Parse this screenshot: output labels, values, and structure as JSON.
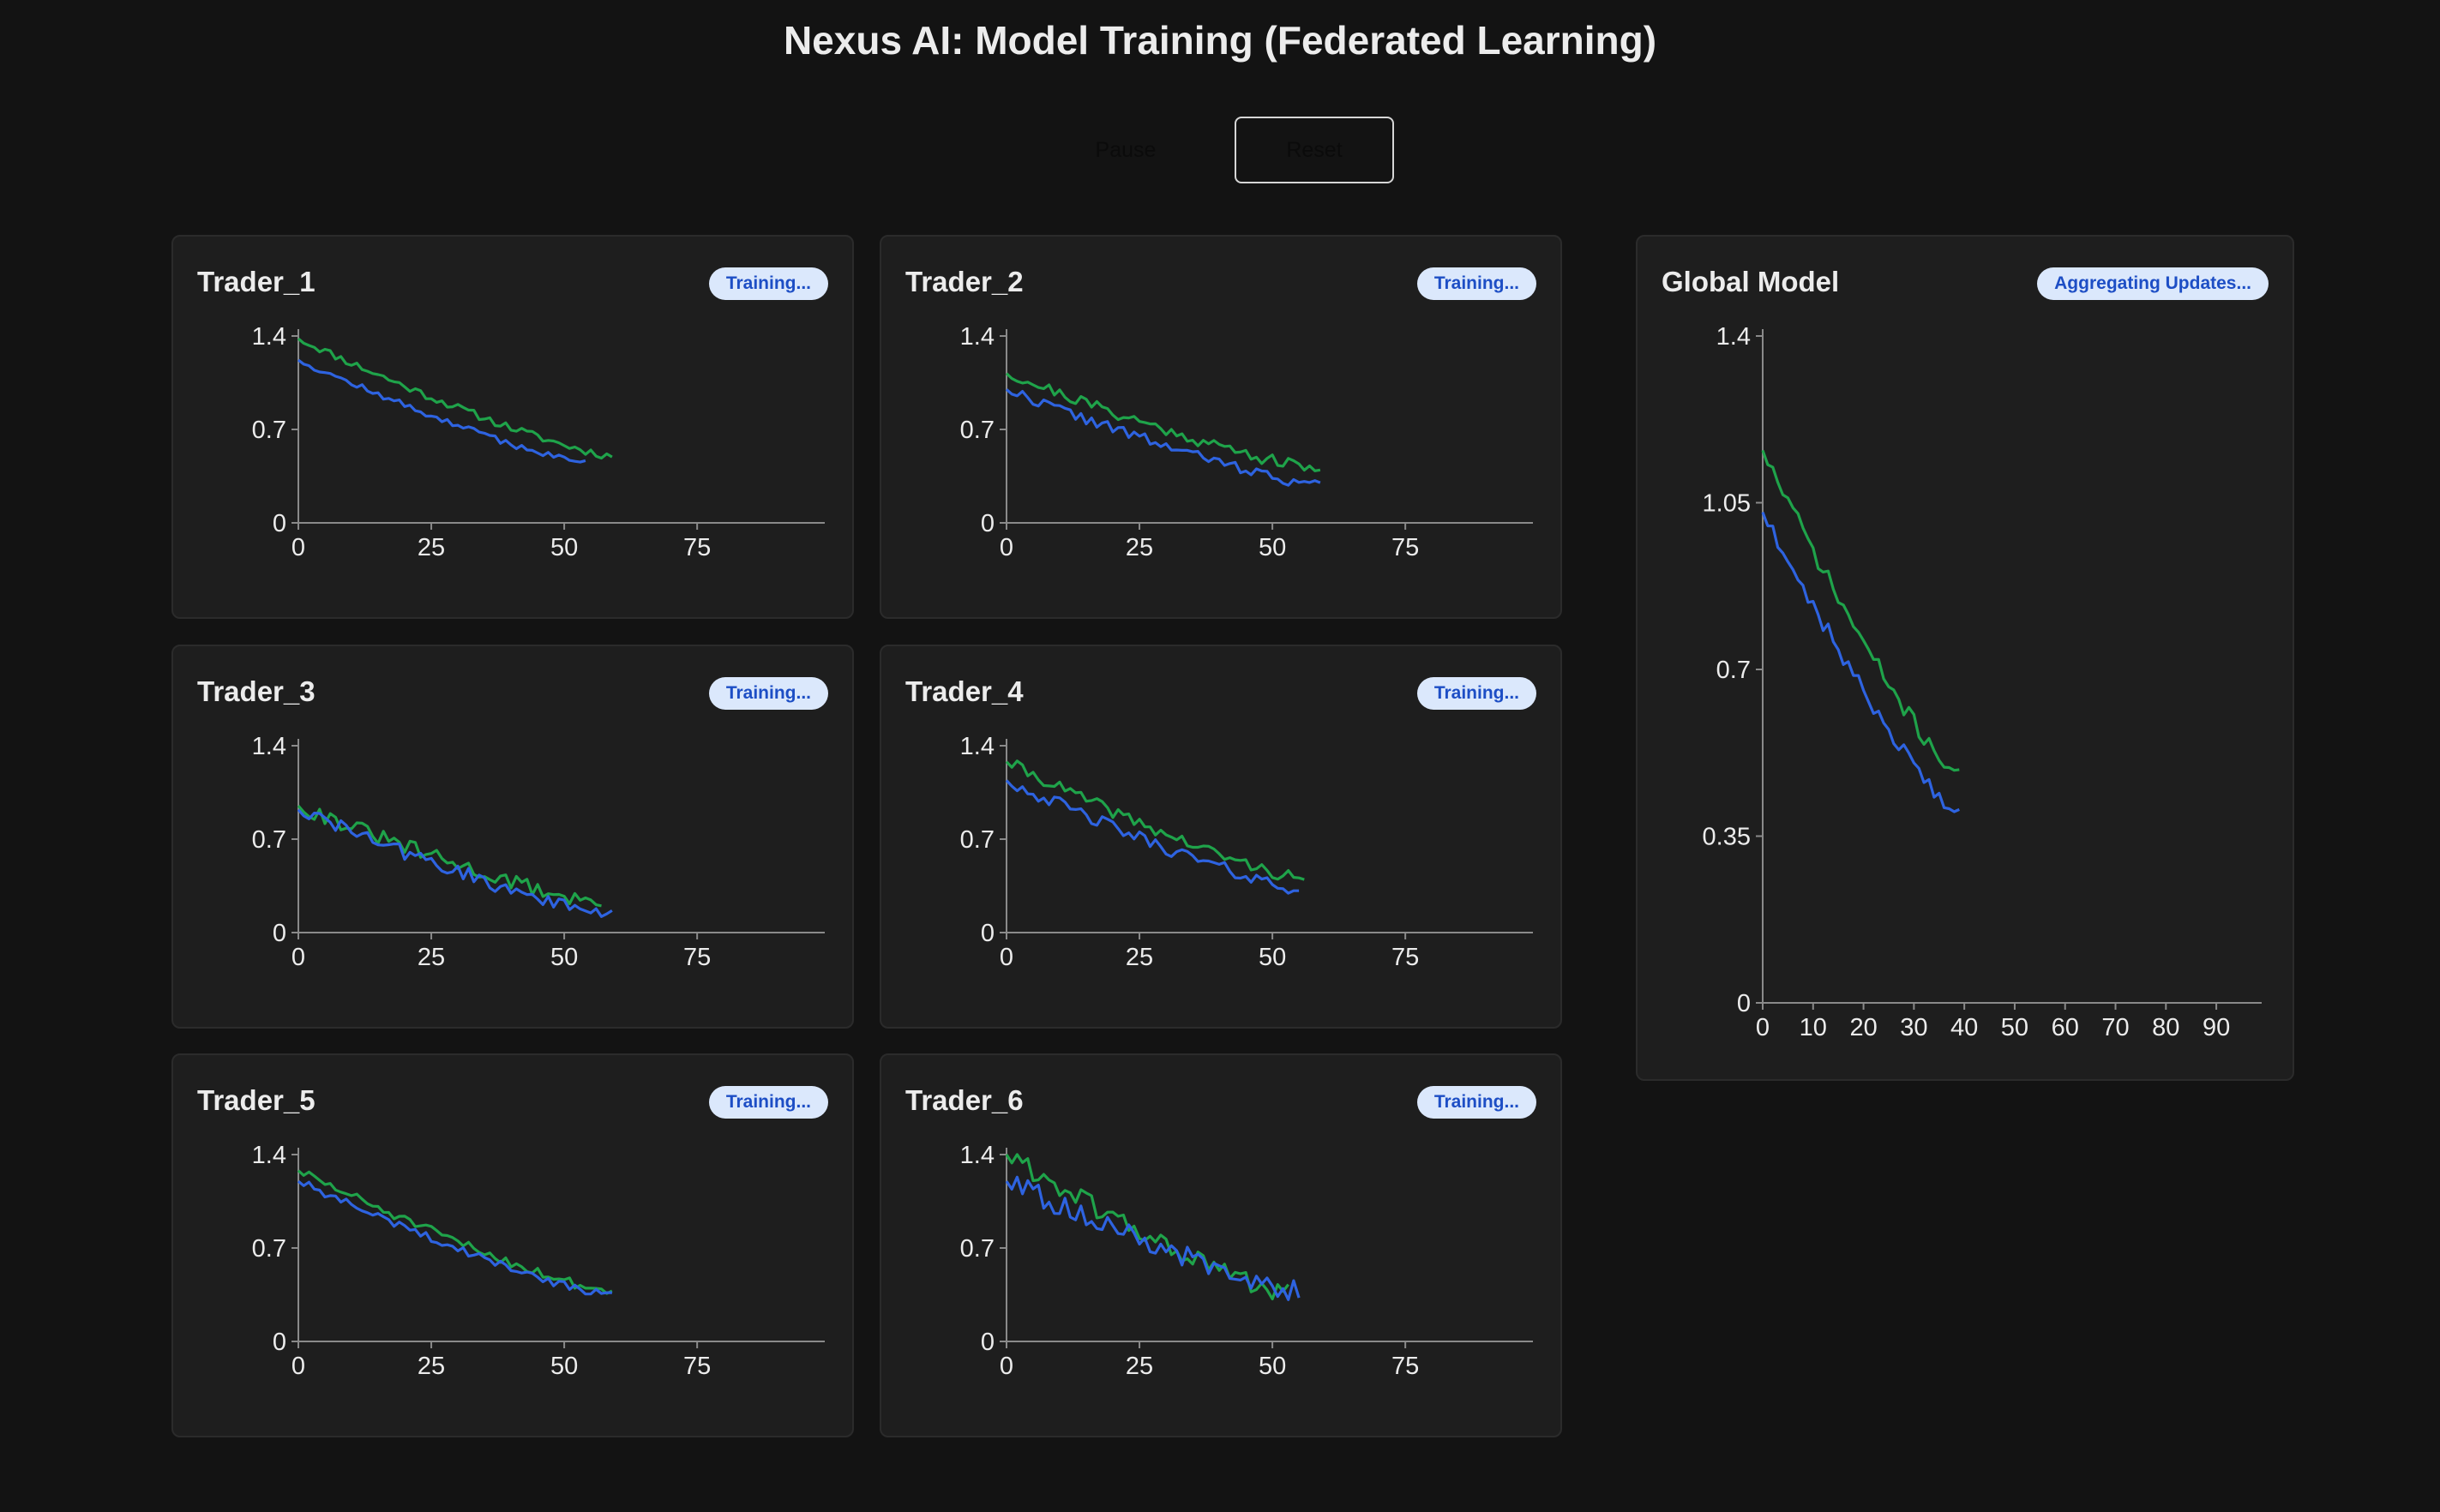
{
  "app": {
    "title": "Nexus AI: Model Training (Federated Learning)"
  },
  "controls": {
    "pause_label": "Pause",
    "reset_label": "Reset"
  },
  "colors": {
    "series_a": "#1fa34a",
    "series_b": "#2e63e0",
    "badge_bg": "#dbe8fc",
    "badge_text": "#1d4ec5"
  },
  "traders": [
    {
      "name": "Trader_1",
      "status": "Training..."
    },
    {
      "name": "Trader_2",
      "status": "Training..."
    },
    {
      "name": "Trader_3",
      "status": "Training..."
    },
    {
      "name": "Trader_4",
      "status": "Training..."
    },
    {
      "name": "Trader_5",
      "status": "Training..."
    },
    {
      "name": "Trader_6",
      "status": "Training..."
    }
  ],
  "global_model": {
    "name": "Global Model",
    "status": "Aggregating Updates..."
  },
  "chart_data": [
    {
      "id": "Trader_1",
      "type": "line",
      "xlim": [
        0,
        99
      ],
      "ylim": [
        0,
        1.4
      ],
      "xticks": [
        0,
        25,
        50,
        75
      ],
      "yticks": [
        0,
        0.7,
        1.4
      ],
      "series": [
        {
          "name": "green",
          "x": [
            0,
            59
          ],
          "start": 1.38,
          "end": 0.5,
          "noise": 0.03,
          "seed": 11
        },
        {
          "name": "blue",
          "x": [
            0,
            54
          ],
          "start": 1.22,
          "end": 0.45,
          "noise": 0.025,
          "seed": 12
        }
      ]
    },
    {
      "id": "Trader_2",
      "type": "line",
      "xlim": [
        0,
        99
      ],
      "ylim": [
        0,
        1.4
      ],
      "xticks": [
        0,
        25,
        50,
        75
      ],
      "yticks": [
        0,
        0.7,
        1.4
      ],
      "series": [
        {
          "name": "green",
          "x": [
            0,
            59
          ],
          "start": 1.12,
          "end": 0.4,
          "noise": 0.045,
          "seed": 21
        },
        {
          "name": "blue",
          "x": [
            0,
            59
          ],
          "start": 1.0,
          "end": 0.28,
          "noise": 0.04,
          "seed": 22
        }
      ]
    },
    {
      "id": "Trader_3",
      "type": "line",
      "xlim": [
        0,
        99
      ],
      "ylim": [
        0,
        1.4
      ],
      "xticks": [
        0,
        25,
        50,
        75
      ],
      "yticks": [
        0,
        0.7,
        1.4
      ],
      "series": [
        {
          "name": "green",
          "x": [
            0,
            57
          ],
          "start": 0.95,
          "end": 0.22,
          "noise": 0.06,
          "seed": 31
        },
        {
          "name": "blue",
          "x": [
            0,
            59
          ],
          "start": 0.92,
          "end": 0.13,
          "noise": 0.055,
          "seed": 32
        }
      ]
    },
    {
      "id": "Trader_4",
      "type": "line",
      "xlim": [
        0,
        99
      ],
      "ylim": [
        0,
        1.4
      ],
      "xticks": [
        0,
        25,
        50,
        75
      ],
      "yticks": [
        0,
        0.7,
        1.4
      ],
      "series": [
        {
          "name": "green",
          "x": [
            0,
            56
          ],
          "start": 1.28,
          "end": 0.4,
          "noise": 0.045,
          "seed": 41
        },
        {
          "name": "blue",
          "x": [
            0,
            55
          ],
          "start": 1.14,
          "end": 0.33,
          "noise": 0.05,
          "seed": 42
        }
      ]
    },
    {
      "id": "Trader_5",
      "type": "line",
      "xlim": [
        0,
        99
      ],
      "ylim": [
        0,
        1.4
      ],
      "xticks": [
        0,
        25,
        50,
        75
      ],
      "yticks": [
        0,
        0.7,
        1.4
      ],
      "series": [
        {
          "name": "green",
          "x": [
            0,
            59
          ],
          "start": 1.28,
          "end": 0.37,
          "noise": 0.035,
          "seed": 51
        },
        {
          "name": "blue",
          "x": [
            0,
            59
          ],
          "start": 1.2,
          "end": 0.34,
          "noise": 0.03,
          "seed": 52
        }
      ]
    },
    {
      "id": "Trader_6",
      "type": "line",
      "xlim": [
        0,
        99
      ],
      "ylim": [
        0,
        1.4
      ],
      "xticks": [
        0,
        25,
        50,
        75
      ],
      "yticks": [
        0,
        0.7,
        1.4
      ],
      "series": [
        {
          "name": "green",
          "x": [
            0,
            53
          ],
          "start": 1.4,
          "end": 0.35,
          "noise": 0.08,
          "seed": 61
        },
        {
          "name": "blue",
          "x": [
            0,
            55
          ],
          "start": 1.2,
          "end": 0.38,
          "noise": 0.085,
          "seed": 62
        }
      ]
    },
    {
      "id": "Global Model",
      "type": "line",
      "xlim": [
        0,
        99
      ],
      "ylim": [
        0,
        1.4
      ],
      "xticks": [
        0,
        10,
        20,
        30,
        40,
        50,
        60,
        70,
        80,
        90
      ],
      "yticks": [
        0,
        0.35,
        0.7,
        1.05,
        1.4
      ],
      "series": [
        {
          "name": "green",
          "x": [
            0,
            39
          ],
          "start": 1.16,
          "end": 0.48,
          "noise": 0.018,
          "seed": 71
        },
        {
          "name": "blue",
          "x": [
            0,
            39
          ],
          "start": 1.03,
          "end": 0.4,
          "noise": 0.018,
          "seed": 72
        }
      ]
    }
  ]
}
